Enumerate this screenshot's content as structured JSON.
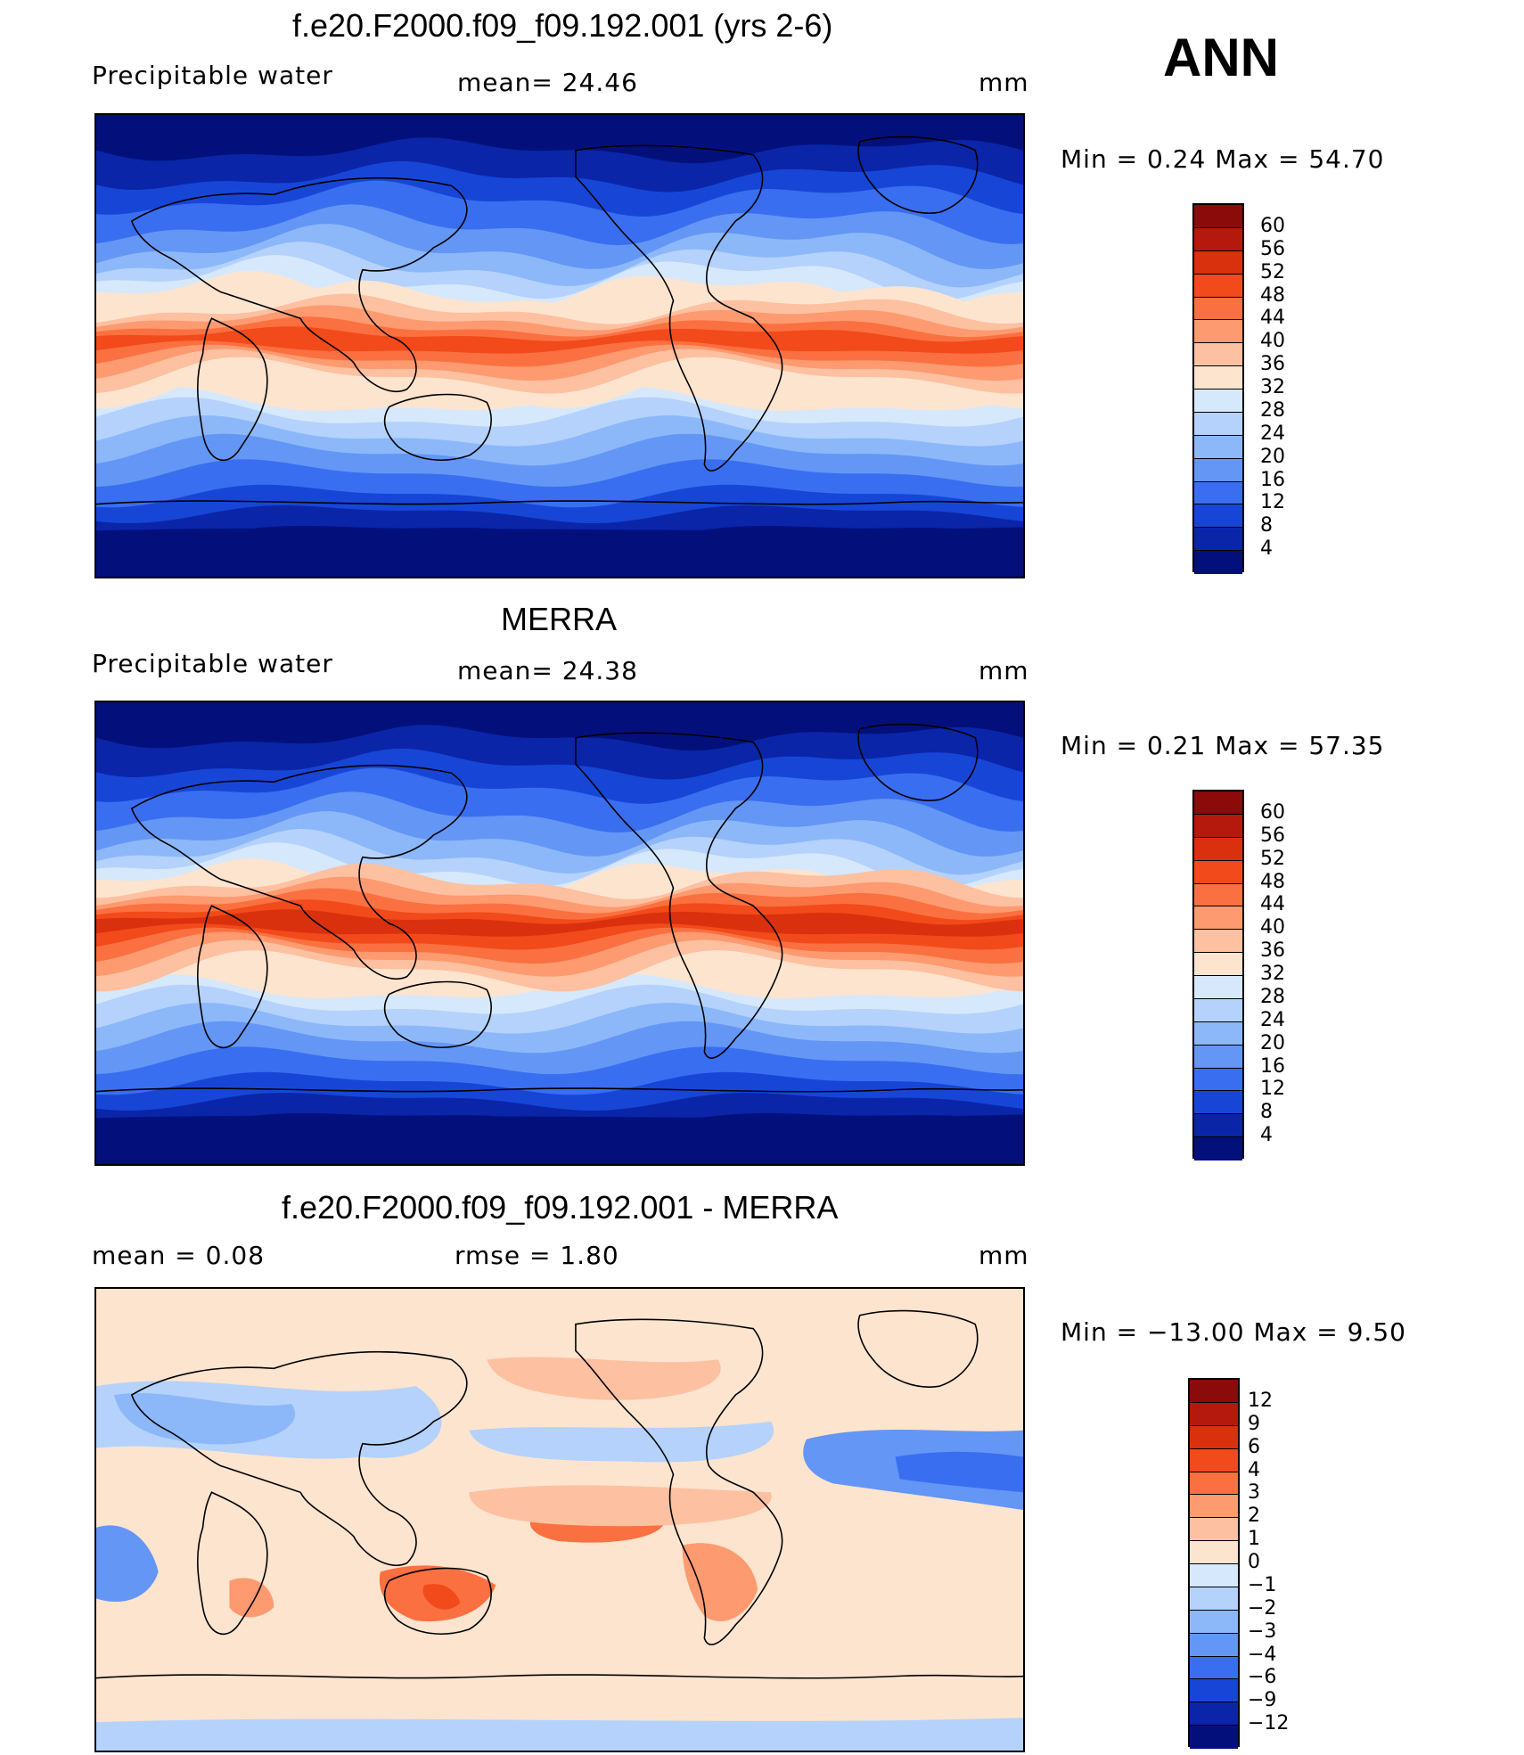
{
  "season": "ANN",
  "panels": [
    {
      "title": "f.e20.F2000.f09_f09.192.001 (yrs 2-6)",
      "left_label": "Precipitable  water",
      "mid_label": "mean=   24.46",
      "unit": "mm",
      "minmax": "Min  =     0.24  Max  =    54.70",
      "colorbar": {
        "labels": [
          "60",
          "56",
          "52",
          "48",
          "44",
          "40",
          "36",
          "32",
          "28",
          "24",
          "20",
          "16",
          "12",
          "8",
          "4"
        ],
        "colors": [
          "#8b0a0a",
          "#b5180c",
          "#d9300e",
          "#f24a1a",
          "#fb7040",
          "#fd9a70",
          "#fdc0a0",
          "#fde4cf",
          "#d6e8fb",
          "#b4d2fb",
          "#8cb8fa",
          "#6496f5",
          "#3a6ef0",
          "#1746d7",
          "#0a25a8",
          "#03107c"
        ]
      },
      "map_variant": "model",
      "chart_data": {
        "type": "heatmap",
        "variable": "Precipitable  water",
        "unit": "mm",
        "mean": 24.46,
        "min": 0.24,
        "max": 54.7,
        "contour_levels": [
          4,
          8,
          12,
          16,
          20,
          24,
          28,
          32,
          36,
          40,
          44,
          48,
          52,
          56,
          60
        ]
      }
    },
    {
      "title": "MERRA",
      "left_label": "Precipitable  water",
      "mid_label": "mean=   24.38",
      "unit": "mm",
      "minmax": "Min  =     0.21  Max  =    57.35",
      "colorbar": {
        "labels": [
          "60",
          "56",
          "52",
          "48",
          "44",
          "40",
          "36",
          "32",
          "28",
          "24",
          "20",
          "16",
          "12",
          "8",
          "4"
        ],
        "colors": [
          "#8b0a0a",
          "#b5180c",
          "#d9300e",
          "#f24a1a",
          "#fb7040",
          "#fd9a70",
          "#fdc0a0",
          "#fde4cf",
          "#d6e8fb",
          "#b4d2fb",
          "#8cb8fa",
          "#6496f5",
          "#3a6ef0",
          "#1746d7",
          "#0a25a8",
          "#03107c"
        ]
      },
      "map_variant": "obs",
      "chart_data": {
        "type": "heatmap",
        "variable": "Precipitable  water",
        "unit": "mm",
        "mean": 24.38,
        "min": 0.21,
        "max": 57.35,
        "contour_levels": [
          4,
          8,
          12,
          16,
          20,
          24,
          28,
          32,
          36,
          40,
          44,
          48,
          52,
          56,
          60
        ]
      }
    },
    {
      "title": "f.e20.F2000.f09_f09.192.001 - MERRA",
      "left_label": "mean  =     0.08",
      "mid_label": "rmse  =     1.80",
      "unit": "mm",
      "minmax": "Min  = −13.00  Max  =      9.50",
      "colorbar": {
        "labels": [
          "12",
          "9",
          "6",
          "4",
          "3",
          "2",
          "1",
          "0",
          "−1",
          "−2",
          "−3",
          "−4",
          "−6",
          "−9",
          "−12"
        ],
        "colors": [
          "#8b0a0a",
          "#b5180c",
          "#d9300e",
          "#f24a1a",
          "#fb7040",
          "#fd9a70",
          "#fdc0a0",
          "#fde4cf",
          "#d6e8fb",
          "#b4d2fb",
          "#8cb8fa",
          "#6496f5",
          "#3a6ef0",
          "#1746d7",
          "#0a25a8",
          "#03107c"
        ]
      },
      "map_variant": "diff",
      "chart_data": {
        "type": "heatmap",
        "variable": "difference",
        "unit": "mm",
        "mean": 0.08,
        "rmse": 1.8,
        "min": -13.0,
        "max": 9.5,
        "contour_levels": [
          -12,
          -9,
          -6,
          -4,
          -3,
          -2,
          -1,
          0,
          1,
          2,
          3,
          4,
          6,
          9,
          12
        ]
      }
    }
  ]
}
